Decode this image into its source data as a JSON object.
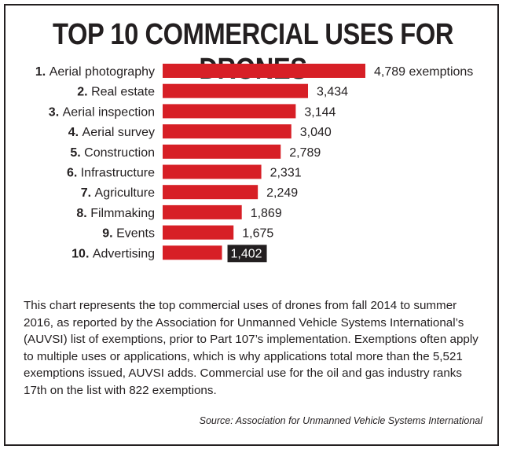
{
  "title": "TOP 10 COMMERCIAL USES FOR DRONES",
  "description": "This chart represents the top commercial uses of drones from fall 2014 to summer 2016, as reported by the Association for Unmanned Vehicle Systems International’s (AUVSI) list of exemptions, prior to Part 107’s implementation. Exemptions often apply to multiple uses or applications, which is why applications total more than the 5,521 exemptions issued, AUVSI adds. Commercial use for the oil and gas industry ranks 17th on the list with 822 exemptions.",
  "source": "Source: Association for Unmanned Vehicle Systems International",
  "colors": {
    "bar": "#d71f26",
    "highlight_label_bg": "#231f20",
    "text": "#231f20"
  },
  "chart_data": {
    "type": "bar",
    "orientation": "horizontal",
    "title": "TOP 10 COMMERCIAL USES FOR DRONES",
    "xlabel": "",
    "ylabel": "",
    "grid": false,
    "xlim": [
      0,
      4789
    ],
    "categories": [
      {
        "rank": "1.",
        "name": "Aerial photography"
      },
      {
        "rank": "2.",
        "name": "Real estate"
      },
      {
        "rank": "3.",
        "name": "Aerial inspection"
      },
      {
        "rank": "4.",
        "name": "Aerial survey"
      },
      {
        "rank": "5.",
        "name": "Construction"
      },
      {
        "rank": "6.",
        "name": "Infrastructure"
      },
      {
        "rank": "7.",
        "name": "Agriculture"
      },
      {
        "rank": "8.",
        "name": "Filmmaking"
      },
      {
        "rank": "9.",
        "name": "Events"
      },
      {
        "rank": "10.",
        "name": "Advertising"
      }
    ],
    "values": [
      4789,
      3434,
      3144,
      3040,
      2789,
      2331,
      2249,
      1869,
      1675,
      1402
    ],
    "value_labels": [
      "4,789 exemptions",
      "3,434",
      "3,144",
      "3,040",
      "2,789",
      "2,331",
      "2,249",
      "1,869",
      "1,675",
      "1,402"
    ],
    "highlighted_index": 9
  }
}
